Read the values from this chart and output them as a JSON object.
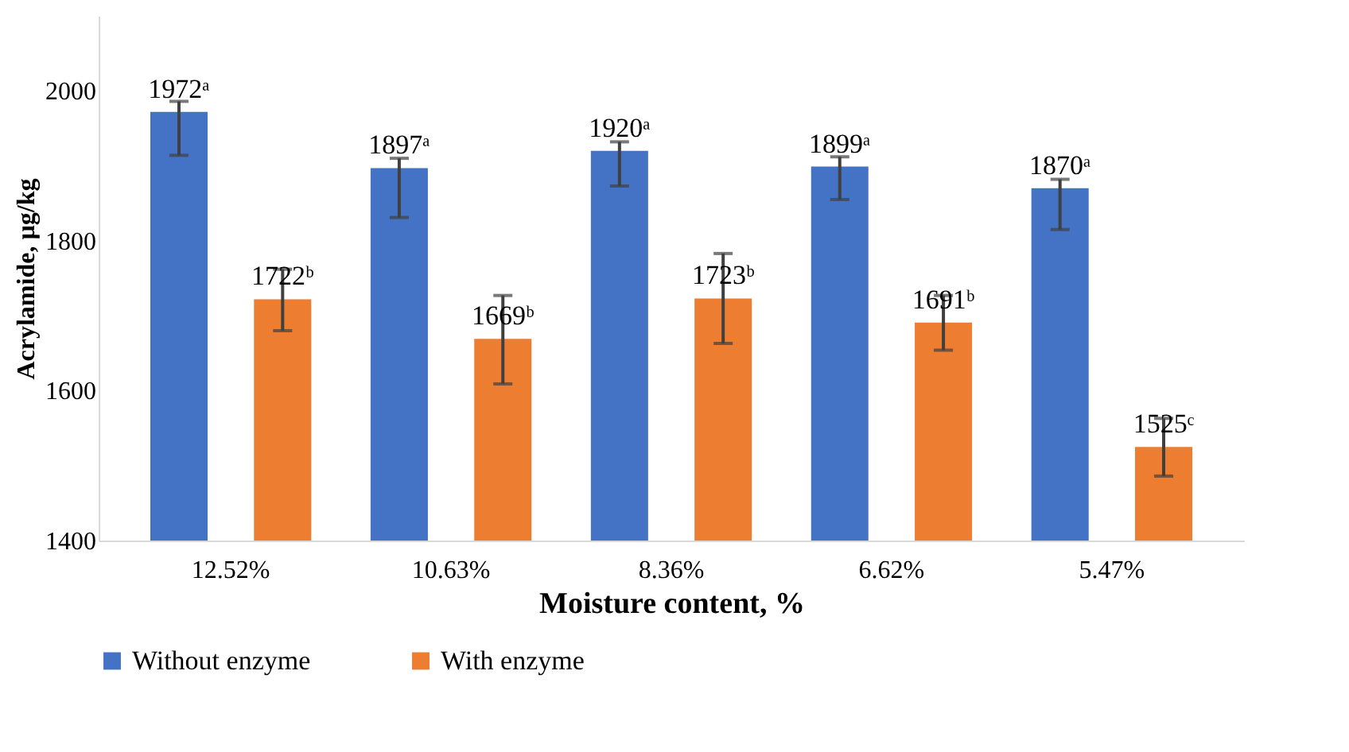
{
  "chart_data": {
    "type": "bar",
    "xlabel": "Moisture content, %",
    "ylabel": "Acrylamide, µg/kg",
    "categories": [
      "12.52%",
      "10.63%",
      "8.36%",
      "6.62%",
      "5.47%"
    ],
    "series": [
      {
        "name": "Without enzyme",
        "color": "#4472c4",
        "values": [
          1972,
          1897,
          1920,
          1899,
          1870
        ],
        "value_labels": [
          "1972ᵃ",
          "1897ᵃ",
          "1920ᵃ",
          "1899ᵃ",
          "1870ᵃ"
        ],
        "errors": [
          [
            1914,
            1986
          ],
          [
            1831,
            1910
          ],
          [
            1873,
            1932
          ],
          [
            1855,
            1912
          ],
          [
            1815,
            1882
          ]
        ]
      },
      {
        "name": "With enzyme",
        "color": "#ed7d31",
        "values": [
          1722,
          1669,
          1723,
          1691,
          1525
        ],
        "value_labels": [
          "1722ᵇ",
          "1669ᵇ",
          "1723ᵇ",
          "1691ᵇ",
          "1525ᶜ"
        ],
        "errors": [
          [
            1680,
            1762
          ],
          [
            1609,
            1727
          ],
          [
            1663,
            1783
          ],
          [
            1654,
            1727
          ],
          [
            1486,
            1563
          ]
        ]
      }
    ],
    "ylim": [
      1400,
      2100
    ],
    "yticks": [
      1400,
      1600,
      1800,
      2000
    ],
    "grid": false,
    "legend": "bottom"
  }
}
